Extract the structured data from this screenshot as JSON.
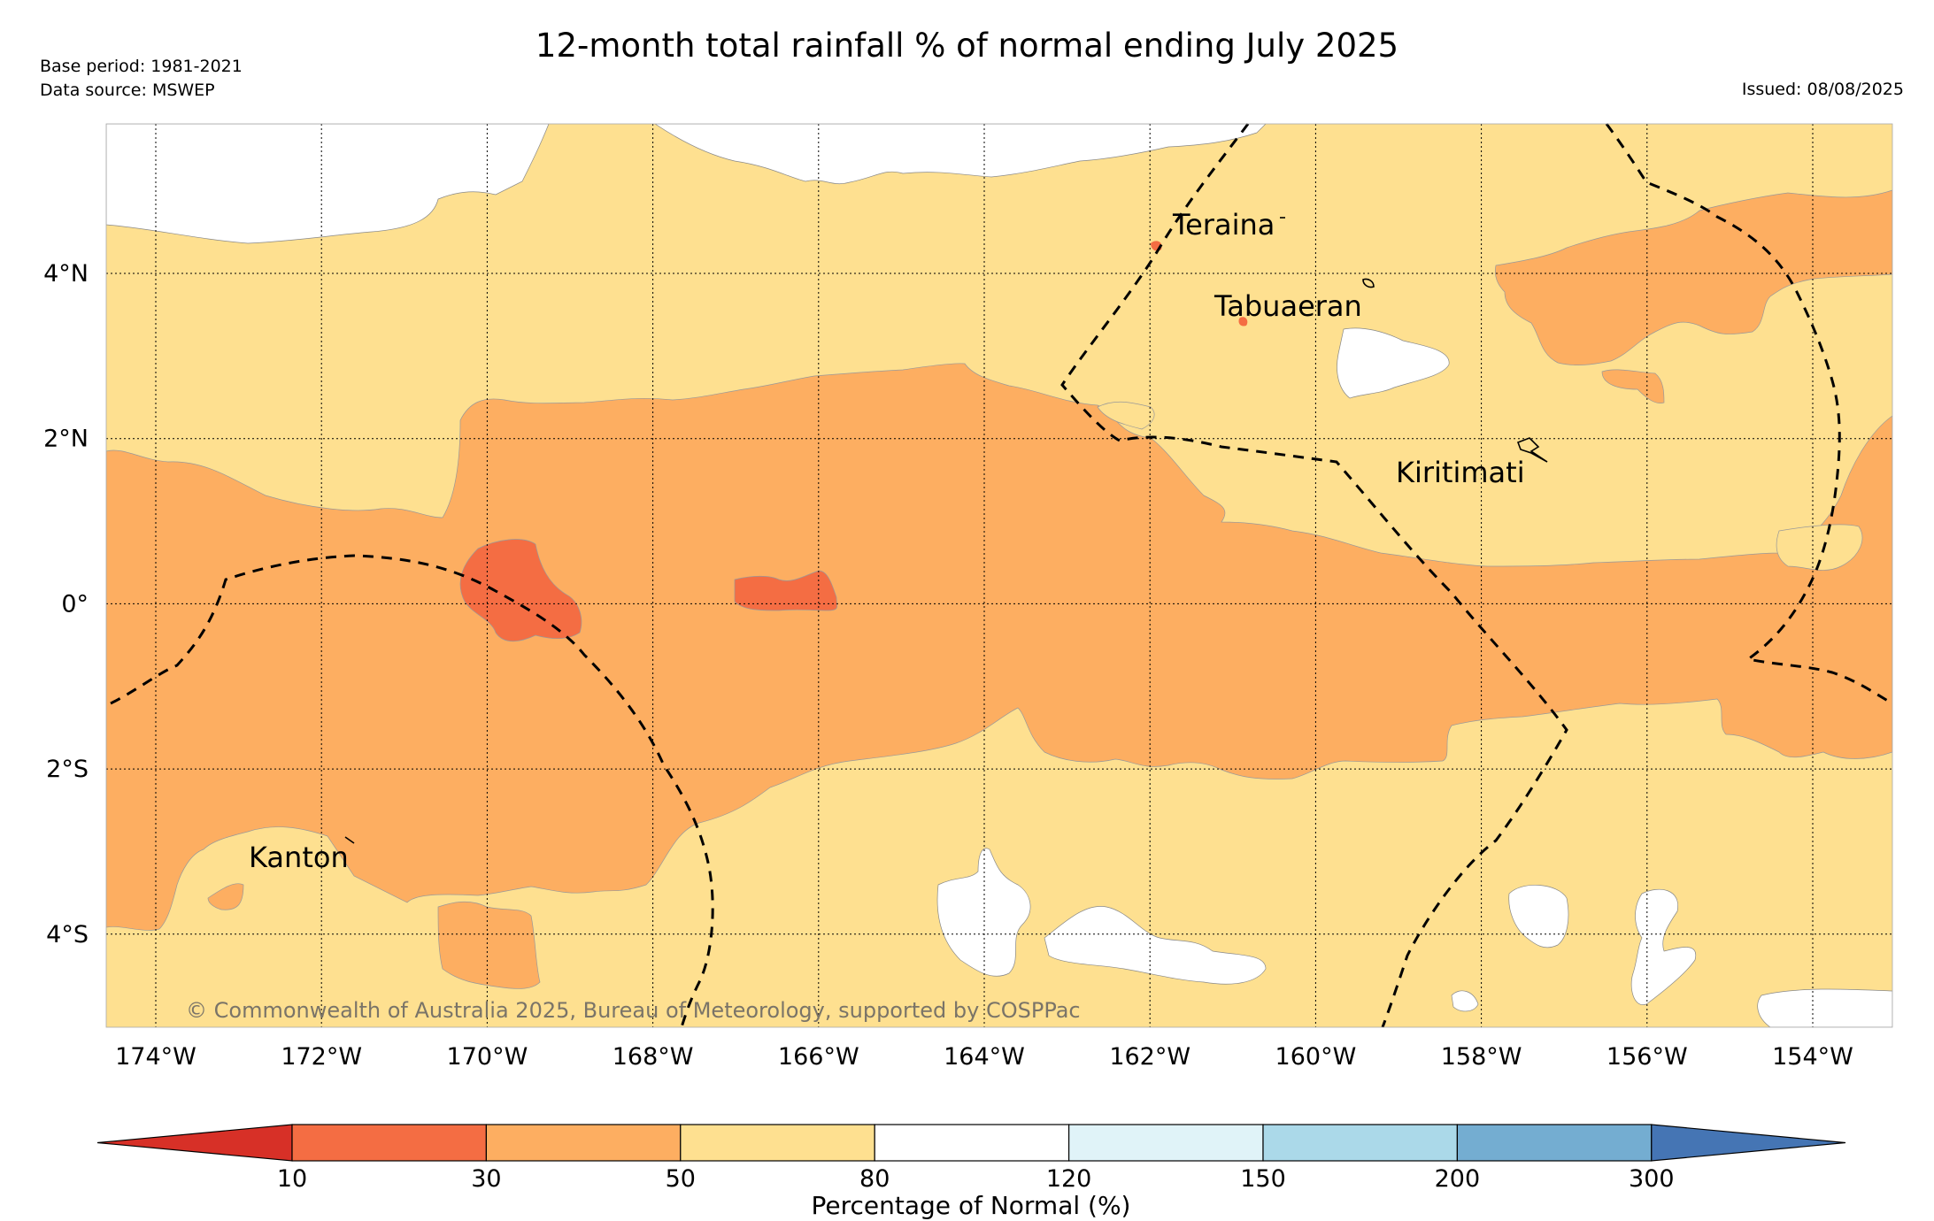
{
  "title": "12-month total rainfall % of normal ending July 2025",
  "meta": {
    "base_period": "Base period: 1981-2021",
    "data_source": "Data source: MSWEP",
    "issued": "Issued: 08/08/2025"
  },
  "map": {
    "lon_ticks": [
      "174°W",
      "172°W",
      "170°W",
      "168°W",
      "166°W",
      "164°W",
      "162°W",
      "160°W",
      "158°W",
      "156°W",
      "154°W"
    ],
    "lat_ticks": [
      "4°N",
      "2°N",
      "0°",
      "2°S",
      "4°S"
    ],
    "places": [
      "Teraina",
      "Tabuaeran",
      "Kiritimati",
      "Kanton"
    ],
    "copyright": "© Commonwealth of Australia 2025, Bureau of Meteorology, supported by COSPPac"
  },
  "colorbar": {
    "label": "Percentage of Normal (%)",
    "ticks": [
      "10",
      "30",
      "50",
      "80",
      "120",
      "150",
      "200",
      "300"
    ],
    "colors": [
      "#d73027",
      "#f46d43",
      "#fdae61",
      "#fee090",
      "#ffffff",
      "#e0f3f8",
      "#abd9e9",
      "#74add1",
      "#4575b4"
    ]
  }
}
